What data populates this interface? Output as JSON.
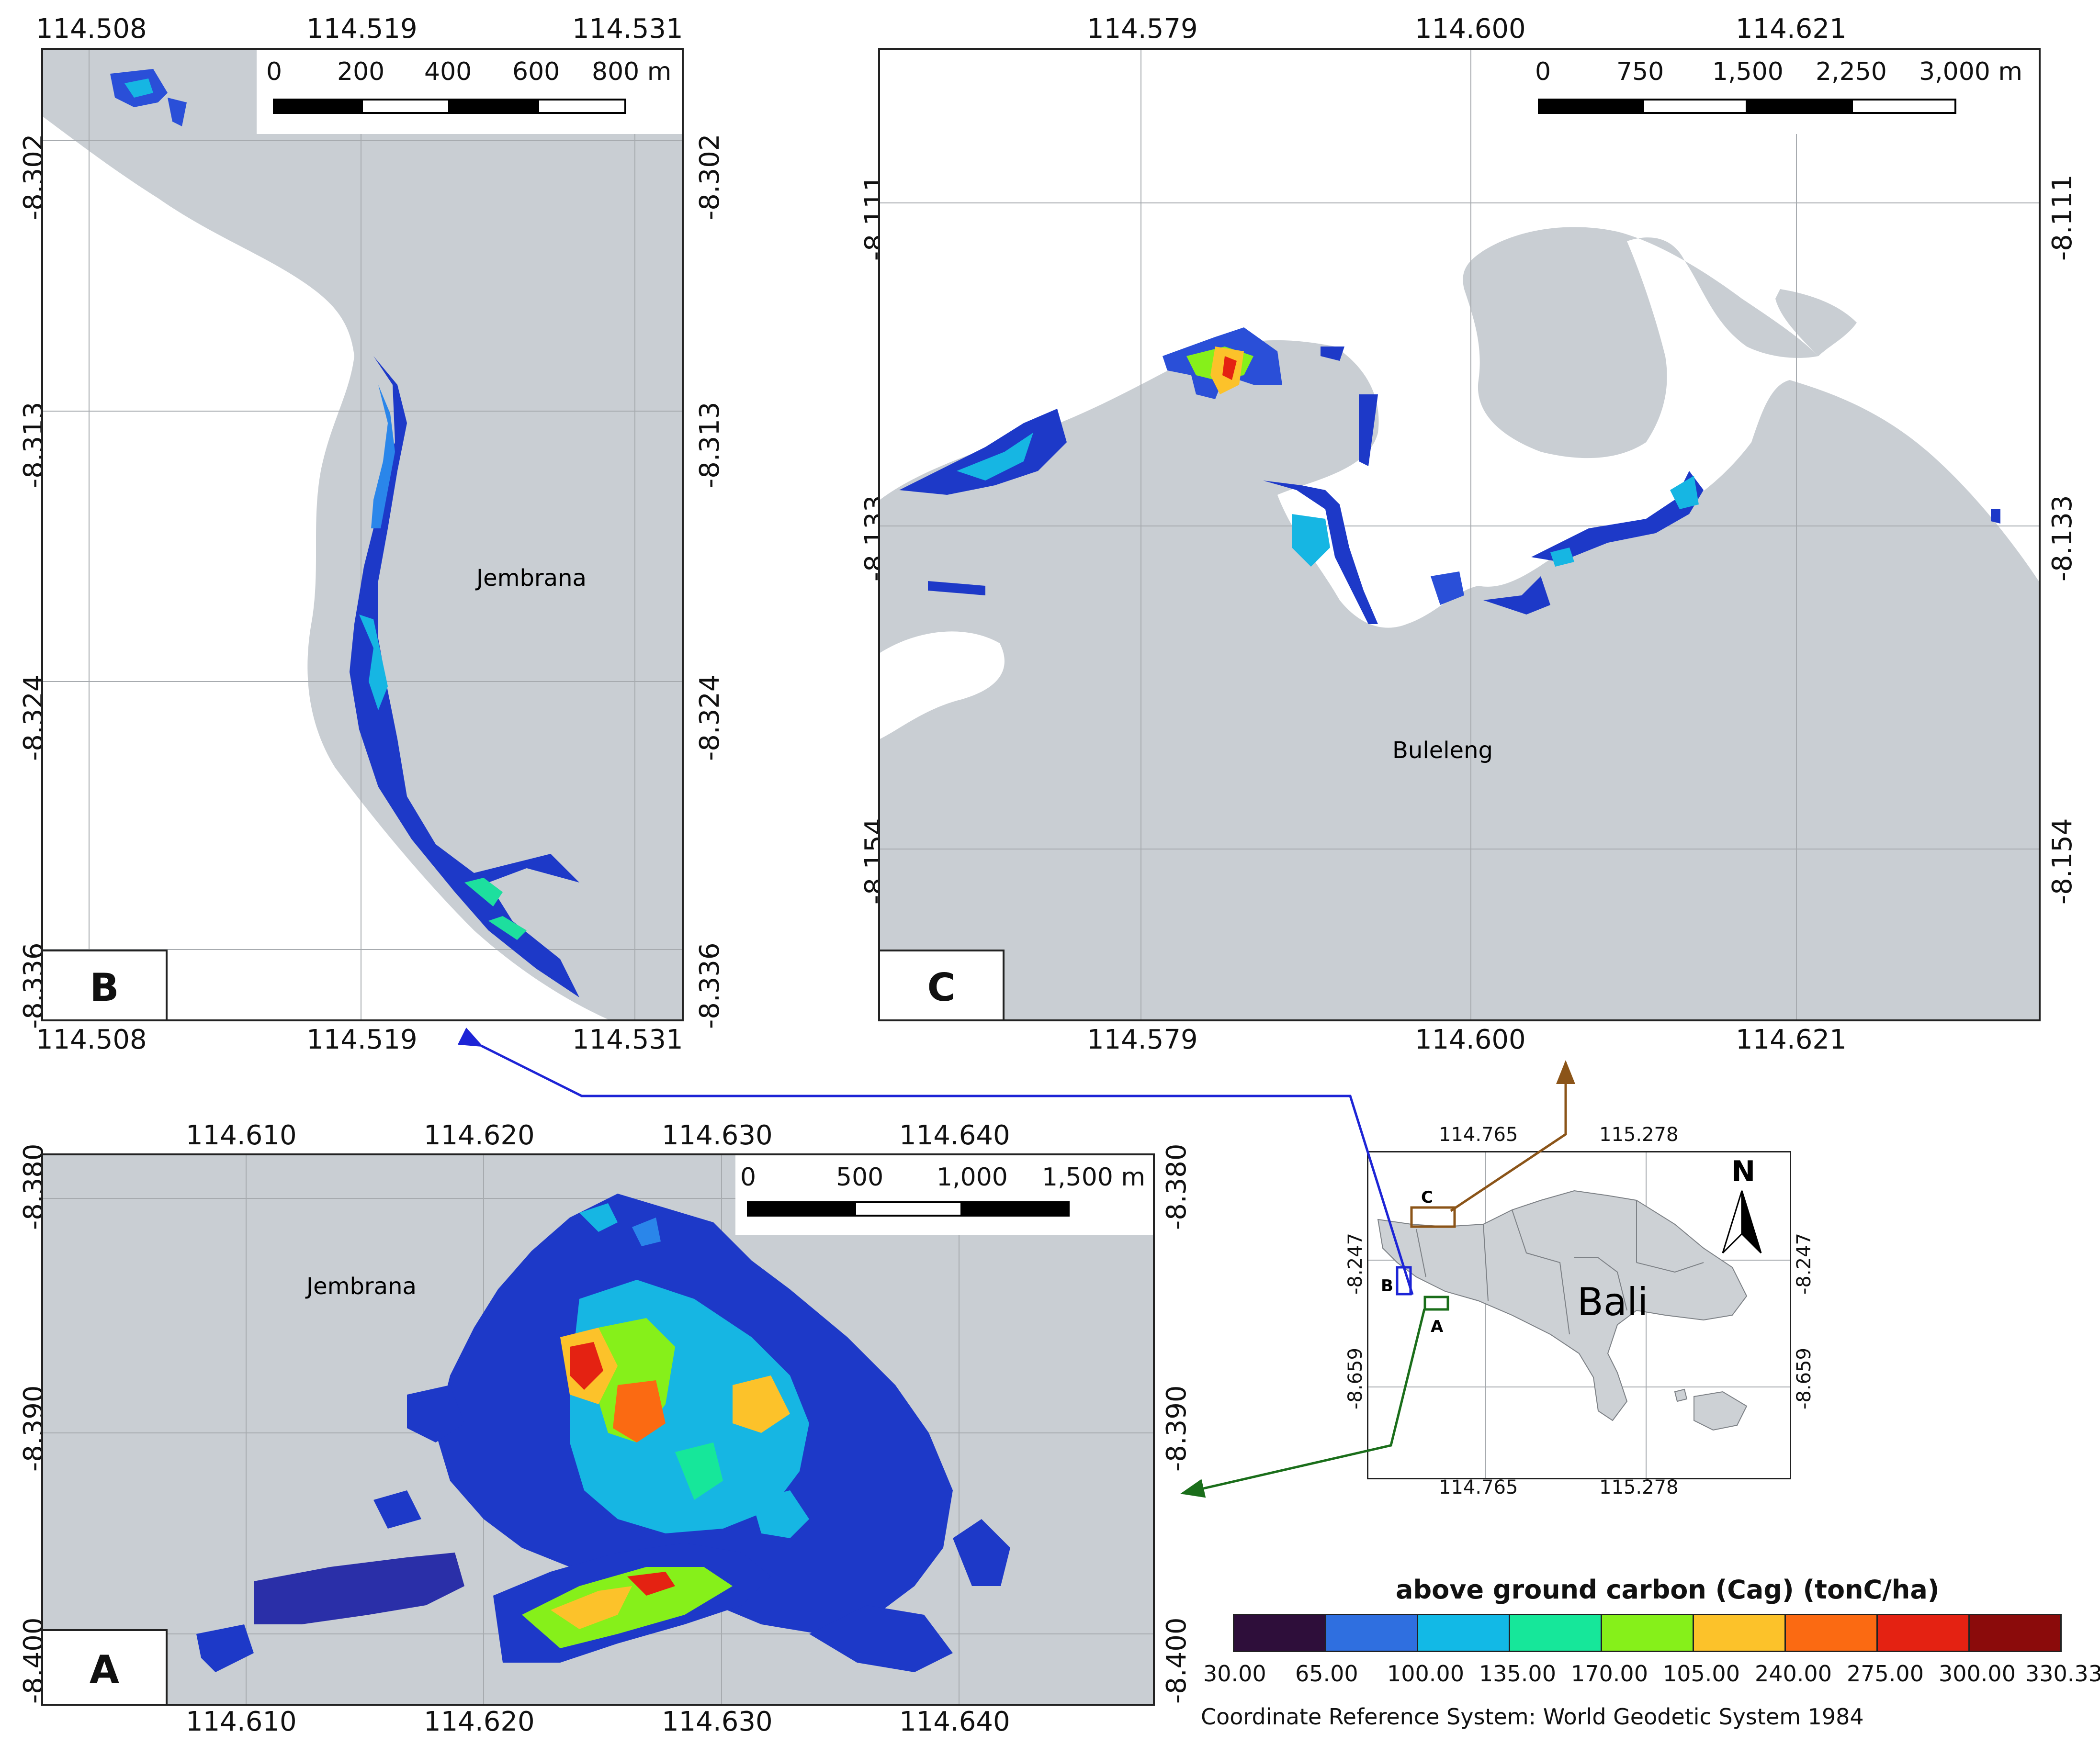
{
  "panels": {
    "A": {
      "letter": "A",
      "place_label": "Jembrana",
      "x_ticks": [
        "114.610",
        "114.620",
        "114.630",
        "114.640"
      ],
      "y_ticks": [
        "-8.380",
        "-8.390",
        "-8.400"
      ],
      "scale": {
        "labels": [
          "0",
          "500",
          "1,000",
          "1,500 m"
        ]
      }
    },
    "B": {
      "letter": "B",
      "place_label": "Jembrana",
      "x_ticks": [
        "114.508",
        "114.519",
        "114.531"
      ],
      "y_ticks": [
        "-8.302",
        "-8.313",
        "-8.324",
        "-8.336"
      ],
      "scale": {
        "labels": [
          "0",
          "200",
          "400",
          "600",
          "800 m"
        ]
      }
    },
    "C": {
      "letter": "C",
      "place_label": "Buleleng",
      "x_ticks": [
        "114.579",
        "114.600",
        "114.621"
      ],
      "y_ticks": [
        "-8.111",
        "-8.133",
        "-8.154"
      ],
      "scale": {
        "labels": [
          "0",
          "750",
          "1,500",
          "2,250",
          "3,000 m"
        ]
      }
    }
  },
  "locator": {
    "title": "Bali",
    "north": "N",
    "x_ticks": [
      "114.765",
      "115.278"
    ],
    "y_ticks": [
      "-8.247",
      "-8.659"
    ],
    "box_labels": [
      "A",
      "B",
      "C"
    ],
    "box_colors": {
      "A": "#1a6e1a",
      "B": "#1d24d6",
      "C": "#8b5418"
    }
  },
  "legend": {
    "title": "above ground carbon (Cag) (tonC/ha)",
    "labels": [
      "30.00",
      "65.00",
      "100.00",
      "135.00",
      "170.00",
      "105.00",
      "240.00",
      "275.00",
      "300.00",
      "330.33"
    ],
    "colors": [
      "#2e0e3a",
      "#2f6fe0",
      "#12b9e6",
      "#16e79a",
      "#86f01a",
      "#fcc22a",
      "#fb6a12",
      "#e42212",
      "#8b0b0b"
    ]
  },
  "crs": "Coordinate Reference System: World Geodetic System 1984"
}
